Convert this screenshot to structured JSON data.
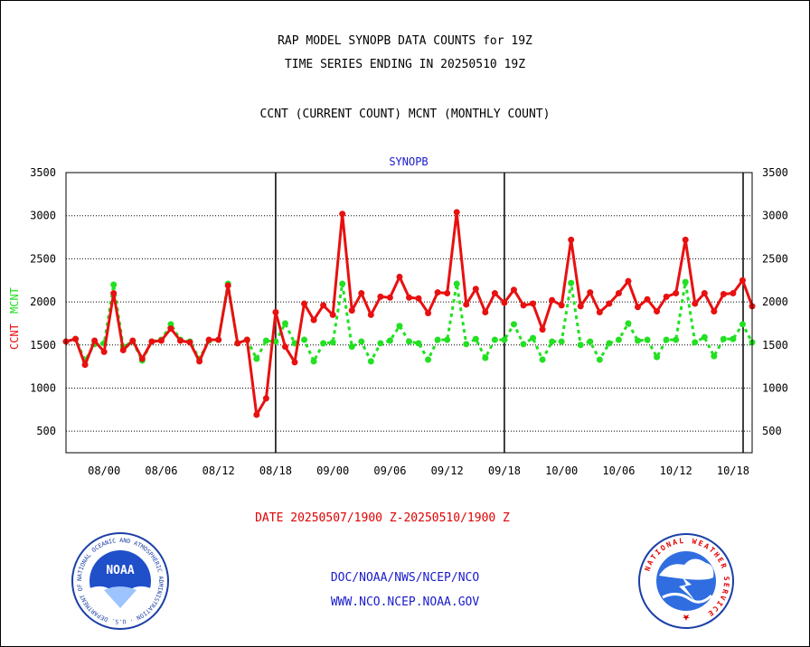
{
  "titles": {
    "line1": "RAP MODEL SYNOPB DATA COUNTS for 19Z",
    "line2": "TIME SERIES ENDING IN 20250510 19Z",
    "line3": "CCNT (CURRENT COUNT) MCNT (MONTHLY COUNT)"
  },
  "footer": {
    "date_range": "DATE 20250507/1900 Z-20250510/1900 Z",
    "org_line": "DOC/NOAA/NWS/NCEP/NCO",
    "url_line": "WWW.NCO.NCEP.NOAA.GOV",
    "noaa_logo_text": "NOAA",
    "noaa_ring_text": "NATIONAL OCEANIC AND ATMOSPHERIC ADMINISTRATION · U.S. DEPARTMENT OF COMMERCE",
    "nws_ring_text": "NATIONAL WEATHER SERVICE"
  },
  "colors": {
    "ccnt": "#e81010",
    "mcnt": "#22e022",
    "title_blue": "#1a1acc",
    "date_red": "#e00000"
  },
  "chart_data": {
    "type": "line",
    "title": "SYNOPB",
    "ylabel_ccnt": "CCNT",
    "ylabel_mcnt": "MCNT",
    "ylim": [
      250,
      3500
    ],
    "yticks": [
      500,
      1000,
      1500,
      2000,
      2500,
      3000,
      3500
    ],
    "grid": true,
    "xtick_labels": [
      "08/00",
      "08/06",
      "08/12",
      "08/18",
      "09/00",
      "09/06",
      "09/12",
      "09/18",
      "10/00",
      "10/06",
      "10/12",
      "10/18"
    ],
    "day_separators": [
      "08/18",
      "09/18"
    ],
    "series": [
      {
        "name": "CCNT",
        "values": [
          1540,
          1570,
          1270,
          1550,
          1420,
          2100,
          1440,
          1550,
          1340,
          1540,
          1550,
          1690,
          1550,
          1530,
          1310,
          1560,
          1560,
          2190,
          1520,
          1560,
          690,
          880,
          1880,
          1480,
          1300,
          1980,
          1790,
          1960,
          1850,
          3020,
          1900,
          2100,
          1850,
          2060,
          2050,
          2290,
          2050,
          2040,
          1870,
          2110,
          2100,
          3040,
          1970,
          2150,
          1880,
          2100,
          1990,
          2140,
          1960,
          1980,
          1680,
          2020,
          1960,
          2720,
          1950,
          2110,
          1880,
          1980,
          2100,
          2240,
          1940,
          2030,
          1890,
          2060,
          2100,
          2720,
          1980,
          2100,
          1890,
          2090,
          2100,
          2250,
          1950
        ]
      },
      {
        "name": "MCNT",
        "values": [
          1540,
          1570,
          1320,
          1510,
          1520,
          2200,
          1480,
          1540,
          1320,
          1540,
          1560,
          1740,
          1560,
          1540,
          1340,
          1550,
          1560,
          2210,
          1520,
          1560,
          1340,
          1550,
          1540,
          1750,
          1520,
          1560,
          1310,
          1520,
          1530,
          2210,
          1480,
          1540,
          1310,
          1520,
          1550,
          1720,
          1540,
          1520,
          1330,
          1560,
          1560,
          2210,
          1510,
          1570,
          1350,
          1560,
          1560,
          1740,
          1510,
          1580,
          1330,
          1540,
          1540,
          2220,
          1500,
          1540,
          1330,
          1520,
          1560,
          1750,
          1550,
          1560,
          1360,
          1560,
          1560,
          2230,
          1530,
          1590,
          1370,
          1570,
          1570,
          1740,
          1530
        ]
      }
    ]
  }
}
